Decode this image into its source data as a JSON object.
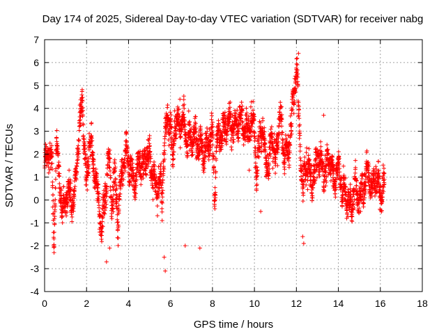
{
  "chart_data": {
    "type": "scatter",
    "title": "Day 174 of 2025, Sidereal Day-to-day VTEC variation (SDTVAR) for receiver nabg",
    "xlabel": "GPS time / hours",
    "ylabel": "SDTVAR / TECUs",
    "xlim": [
      0,
      18
    ],
    "ylim": [
      -4,
      7
    ],
    "xticks": [
      0,
      2,
      4,
      6,
      8,
      10,
      12,
      14,
      16,
      18
    ],
    "yticks": [
      -4,
      -3,
      -2,
      -1,
      0,
      1,
      2,
      3,
      4,
      5,
      6,
      7
    ],
    "grid": true,
    "marker": "+",
    "color": "#ff0000",
    "x_range_of_data": [
      0,
      16.2
    ],
    "trend": [
      [
        0.0,
        1.3
      ],
      [
        0.2,
        2.2
      ],
      [
        0.35,
        1.5
      ],
      [
        0.45,
        -1.8
      ],
      [
        0.55,
        2.5
      ],
      [
        0.7,
        1.0
      ],
      [
        0.85,
        -0.7
      ],
      [
        1.0,
        0.2
      ],
      [
        1.2,
        0.4
      ],
      [
        1.4,
        -0.3
      ],
      [
        1.55,
        2.0
      ],
      [
        1.7,
        3.3
      ],
      [
        1.8,
        4.4
      ],
      [
        1.9,
        2.2
      ],
      [
        2.0,
        0.6
      ],
      [
        2.15,
        2.8
      ],
      [
        2.3,
        1.8
      ],
      [
        2.5,
        0.5
      ],
      [
        2.7,
        -1.3
      ],
      [
        2.9,
        0.2
      ],
      [
        3.05,
        1.9
      ],
      [
        3.2,
        0.0
      ],
      [
        3.35,
        0.9
      ],
      [
        3.5,
        -0.8
      ],
      [
        3.7,
        1.5
      ],
      [
        3.9,
        2.1
      ],
      [
        4.1,
        1.3
      ],
      [
        4.3,
        0.6
      ],
      [
        4.5,
        1.8
      ],
      [
        4.7,
        1.3
      ],
      [
        4.9,
        2.2
      ],
      [
        5.1,
        1.4
      ],
      [
        5.3,
        0.4
      ],
      [
        5.5,
        1.0
      ],
      [
        5.6,
        -0.2
      ],
      [
        5.7,
        2.7
      ],
      [
        5.85,
        3.3
      ],
      [
        6.0,
        3.8
      ],
      [
        6.1,
        1.2
      ],
      [
        6.2,
        3.6
      ],
      [
        6.4,
        3.2
      ],
      [
        6.6,
        3.6
      ],
      [
        6.8,
        2.5
      ],
      [
        7.0,
        2.6
      ],
      [
        7.2,
        2.7
      ],
      [
        7.4,
        2.4
      ],
      [
        7.6,
        2.0
      ],
      [
        7.8,
        2.5
      ],
      [
        8.0,
        3.0
      ],
      [
        8.1,
        0.0
      ],
      [
        8.2,
        2.6
      ],
      [
        8.4,
        2.8
      ],
      [
        8.6,
        3.2
      ],
      [
        8.8,
        3.4
      ],
      [
        9.0,
        3.1
      ],
      [
        9.2,
        3.4
      ],
      [
        9.4,
        3.6
      ],
      [
        9.6,
        3.0
      ],
      [
        9.8,
        3.3
      ],
      [
        10.0,
        3.3
      ],
      [
        10.1,
        1.0
      ],
      [
        10.3,
        3.3
      ],
      [
        10.5,
        2.1
      ],
      [
        10.7,
        1.3
      ],
      [
        10.8,
        3.2
      ],
      [
        11.0,
        1.6
      ],
      [
        11.2,
        3.8
      ],
      [
        11.4,
        2.2
      ],
      [
        11.6,
        2.0
      ],
      [
        11.9,
        4.7
      ],
      [
        12.0,
        6.0
      ],
      [
        12.1,
        3.9
      ],
      [
        12.2,
        1.9
      ],
      [
        12.3,
        0.5
      ],
      [
        12.5,
        1.7
      ],
      [
        12.7,
        0.8
      ],
      [
        12.9,
        1.2
      ],
      [
        13.0,
        2.0
      ],
      [
        13.2,
        1.5
      ],
      [
        13.4,
        1.2
      ],
      [
        13.6,
        1.9
      ],
      [
        13.8,
        0.9
      ],
      [
        14.0,
        1.4
      ],
      [
        14.2,
        0.4
      ],
      [
        14.4,
        0.1
      ],
      [
        14.6,
        -0.4
      ],
      [
        14.8,
        0.7
      ],
      [
        15.0,
        -0.1
      ],
      [
        15.2,
        0.6
      ],
      [
        15.4,
        1.3
      ],
      [
        15.6,
        0.5
      ],
      [
        15.8,
        1.1
      ],
      [
        16.0,
        0.3
      ],
      [
        16.2,
        0.7
      ]
    ],
    "spread": 0.7,
    "point_count": 3200,
    "outliers": [
      [
        5.75,
        -3.1
      ],
      [
        5.7,
        -2.5
      ],
      [
        2.95,
        -2.7
      ],
      [
        12.35,
        -1.9
      ],
      [
        12.3,
        -1.6
      ],
      [
        6.7,
        -2.0
      ],
      [
        7.4,
        -2.1
      ],
      [
        13.3,
        3.7
      ],
      [
        10.3,
        -0.5
      ],
      [
        9.75,
        1.3
      ],
      [
        3.1,
        -2.1
      ],
      [
        0.45,
        -2.3
      ],
      [
        11.1,
        1.5
      ],
      [
        12.1,
        6.4
      ],
      [
        6.45,
        4.4
      ]
    ]
  }
}
